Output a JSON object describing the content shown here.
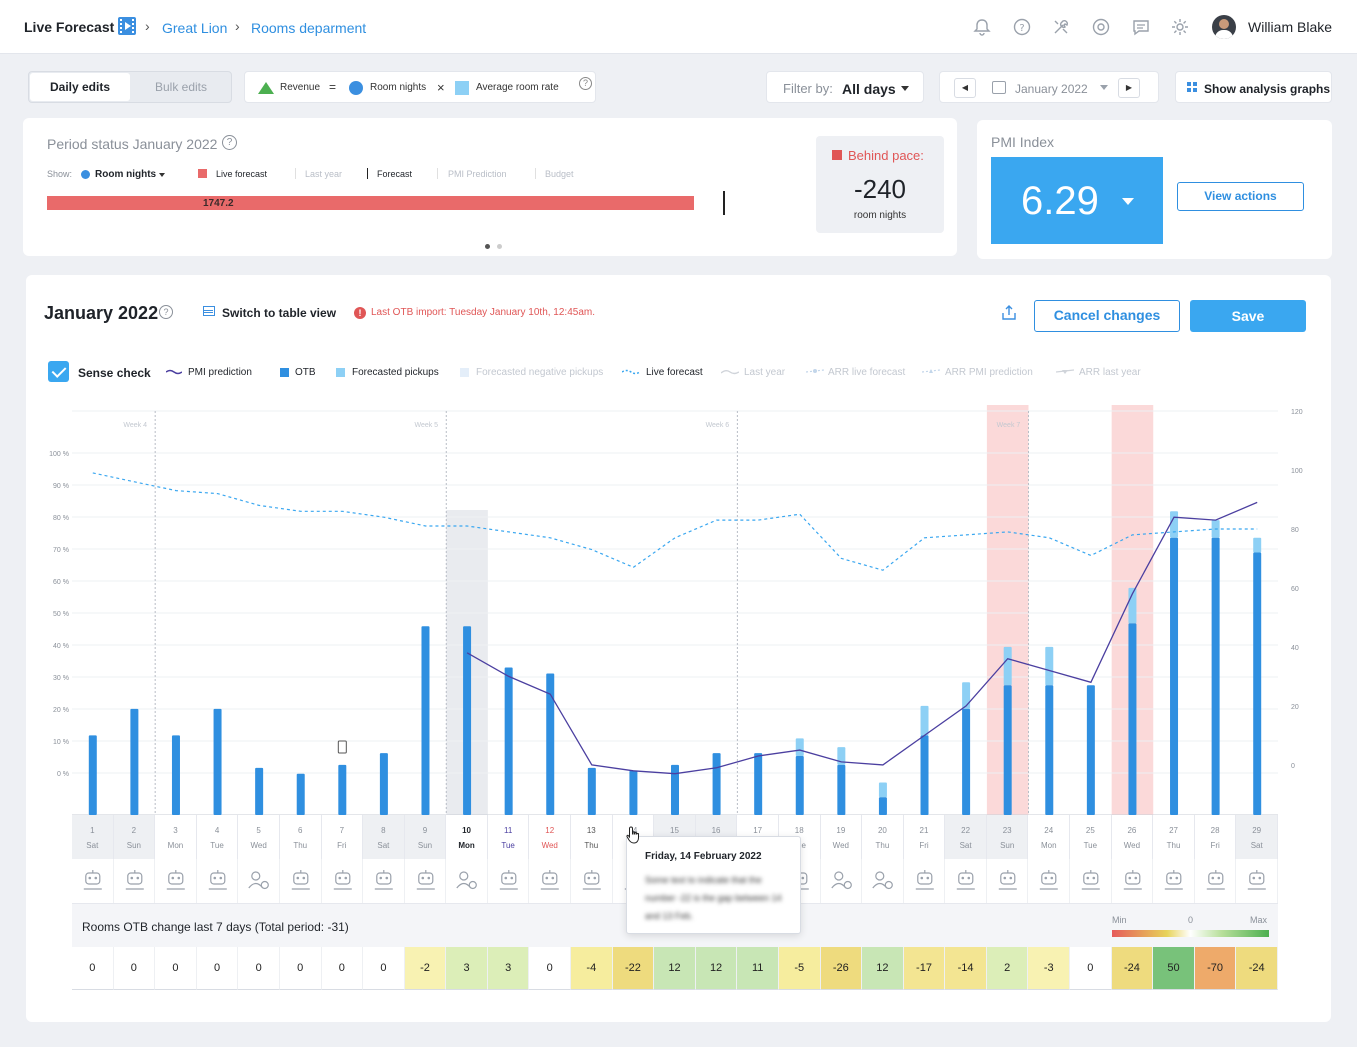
{
  "topbar": {
    "title": "Live Forecast",
    "breadcrumb": [
      "Great Lion",
      "Rooms deparment"
    ],
    "icons": [
      "bell-icon",
      "help-icon",
      "tools-icon",
      "settings-badge-icon",
      "chat-icon",
      "gear-icon"
    ],
    "user_name": "William Blake"
  },
  "toolbar": {
    "daily_edits": "Daily edits",
    "bulk_edits": "Bulk edits",
    "formula": {
      "revenue": "Revenue",
      "equals": "=",
      "room_nights": "Room nights",
      "times": "×",
      "average_room_rate": "Average room rate"
    },
    "filter_label": "Filter by:",
    "filter_value": "All days",
    "month": "January 2022",
    "show_graphs": "Show analysis graphs"
  },
  "period": {
    "title": "Period status January 2022",
    "show_label": "Show:",
    "show_value": "Room nights",
    "legend": [
      "Live forecast",
      "Last year",
      "Forecast",
      "PMI Prediction",
      "Budget"
    ],
    "bar_value": "1747.2",
    "pace_label": "Behind pace:",
    "pace_value": "-240",
    "pace_unit": "room nights"
  },
  "pmi": {
    "title": "PMI Index",
    "value": "6.29",
    "view_actions": "View actions"
  },
  "main": {
    "title": "January 2022",
    "table_view": "Switch to table view",
    "warning": "Last OTB import: Tuesday January 10th, 12:45am.",
    "cancel": "Cancel changes",
    "save": "Save",
    "legend": {
      "sense_check": "Sense check",
      "pmi_prediction": "PMI prediction",
      "otb": "OTB",
      "forecasted_pickups": "Forecasted pickups",
      "forecasted_negative_pickups": "Forecasted negative pickups",
      "live_forecast": "Live forecast",
      "last_year": "Last year",
      "arr_live_forecast": "ARR live forecast",
      "arr_pmi_prediction": "ARR PMI prediction",
      "arr_last_year": "ARR last year"
    },
    "otb_change_label": "Rooms OTB change last 7 days (Total period: -31)",
    "scale": {
      "min": "Min",
      "zero": "0",
      "max": "Max"
    }
  },
  "tooltip": {
    "title": "Friday, 14 February 2022",
    "body": "Some text to indicate that the number -22 is the gap between 14 and 13 Feb."
  },
  "colors": {
    "otb": "#2f8fe0",
    "pickup": "#8dd0f5",
    "pmi_line": "#4b3fa0",
    "live_forecast": "#3aa7f0",
    "highlight": "#fbd9d9",
    "accent": "#3aa7f0"
  },
  "chart_data": {
    "type": "bar",
    "title": "",
    "week_labels": [
      "Week 4",
      "Week 5",
      "Week 6",
      "Week 7"
    ],
    "left_axis": {
      "ticks": [
        "100 %",
        "90 %",
        "80 %",
        "70 %",
        "60 %",
        "50 %",
        "40 %",
        "30 %",
        "20 %",
        "10 %",
        "0 %"
      ]
    },
    "right_axis": {
      "ticks": [
        "120",
        "100",
        "80",
        "60",
        "40",
        "20",
        "0"
      ],
      "ylim": [
        -17,
        120
      ]
    },
    "days": [
      {
        "d": "1",
        "w": "Sat",
        "otb": 10,
        "pickup": 0,
        "pmi": null,
        "live": 99,
        "weekend": true,
        "delta": "0"
      },
      {
        "d": "2",
        "w": "Sun",
        "otb": 19,
        "pickup": 0,
        "pmi": null,
        "live": 96,
        "weekend": true,
        "delta": "0"
      },
      {
        "d": "3",
        "w": "Mon",
        "otb": 10,
        "pickup": 0,
        "pmi": null,
        "live": 93,
        "weekend": false,
        "delta": "0"
      },
      {
        "d": "4",
        "w": "Tue",
        "otb": 19,
        "pickup": 0,
        "pmi": null,
        "live": 92,
        "weekend": false,
        "delta": "0"
      },
      {
        "d": "5",
        "w": "Wed",
        "otb": -1,
        "pickup": 0,
        "pmi": null,
        "live": 88,
        "weekend": false,
        "delta": "0"
      },
      {
        "d": "6",
        "w": "Thu",
        "otb": -3,
        "pickup": 0,
        "pmi": null,
        "live": 86,
        "weekend": false,
        "delta": "0"
      },
      {
        "d": "7",
        "w": "Fri",
        "otb": 0,
        "pickup": 0,
        "pmi": null,
        "live": 86,
        "weekend": false,
        "delta": "0"
      },
      {
        "d": "8",
        "w": "Sat",
        "otb": 4,
        "pickup": 0,
        "pmi": null,
        "live": 84,
        "weekend": true,
        "delta": "0"
      },
      {
        "d": "9",
        "w": "Sun",
        "otb": 47,
        "pickup": 0,
        "pmi": null,
        "live": 81,
        "weekend": true,
        "delta": "-2"
      },
      {
        "d": "10",
        "w": "Mon",
        "otb": 47,
        "pickup": 0,
        "pmi": 38,
        "live": 81,
        "weekend": false,
        "delta": "3"
      },
      {
        "d": "11",
        "w": "Tue",
        "otb": 33,
        "pickup": 0,
        "pmi": 30,
        "live": 79,
        "weekend": false,
        "delta": "3"
      },
      {
        "d": "12",
        "w": "Wed",
        "otb": 31,
        "pickup": 0,
        "pmi": 24,
        "live": 77,
        "weekend": false,
        "delta": "0"
      },
      {
        "d": "13",
        "w": "Thu",
        "otb": -1,
        "pickup": 0,
        "pmi": 0,
        "live": 73,
        "weekend": false,
        "delta": "-4"
      },
      {
        "d": "14",
        "w": "Fri",
        "otb": -2,
        "pickup": 0,
        "pmi": -2,
        "live": 67,
        "weekend": false,
        "delta": "-22"
      },
      {
        "d": "15",
        "w": "Sat",
        "otb": 0,
        "pickup": 0,
        "pmi": -3,
        "live": 77,
        "weekend": true,
        "delta": "12"
      },
      {
        "d": "16",
        "w": "Sun",
        "otb": 4,
        "pickup": 0,
        "pmi": -1,
        "live": 83,
        "weekend": true,
        "delta": "12"
      },
      {
        "d": "17",
        "w": "Mon",
        "otb": 4,
        "pickup": 0,
        "pmi": 3,
        "live": 83,
        "weekend": false,
        "delta": "11"
      },
      {
        "d": "18",
        "w": "Tue",
        "otb": 3,
        "pickup": 9,
        "pmi": 5,
        "live": 85,
        "weekend": false,
        "delta": "-5"
      },
      {
        "d": "19",
        "w": "Wed",
        "otb": 0,
        "pickup": 6,
        "pmi": 1,
        "live": 70,
        "weekend": false,
        "delta": "-26"
      },
      {
        "d": "20",
        "w": "Thu",
        "otb": -11,
        "pickup": -6,
        "pmi": 0,
        "live": 66,
        "weekend": false,
        "delta": "12"
      },
      {
        "d": "21",
        "w": "Fri",
        "otb": 10,
        "pickup": 20,
        "pmi": 10,
        "live": 77,
        "weekend": false,
        "delta": "-17"
      },
      {
        "d": "22",
        "w": "Sat",
        "otb": 19,
        "pickup": 28,
        "pmi": 20,
        "live": 78,
        "weekend": true,
        "delta": "-14"
      },
      {
        "d": "23",
        "w": "Sun",
        "otb": 27,
        "pickup": 40,
        "pmi": 36,
        "live": 79,
        "weekend": true,
        "delta": "2"
      },
      {
        "d": "24",
        "w": "Mon",
        "otb": 27,
        "pickup": 40,
        "pmi": 32,
        "live": 77,
        "weekend": false,
        "delta": "-3"
      },
      {
        "d": "25",
        "w": "Tue",
        "otb": 27,
        "pickup": 0,
        "pmi": 28,
        "live": 71,
        "weekend": false,
        "delta": "0"
      },
      {
        "d": "26",
        "w": "Wed",
        "otb": 48,
        "pickup": 60,
        "pmi": 58,
        "live": 78,
        "weekend": false,
        "delta": "-24"
      },
      {
        "d": "27",
        "w": "Thu",
        "otb": 77,
        "pickup": 86,
        "pmi": 84,
        "live": 79,
        "weekend": false,
        "delta": "50"
      },
      {
        "d": "28",
        "w": "Fri",
        "otb": 77,
        "pickup": 83,
        "pmi": 83,
        "live": 80,
        "weekend": false,
        "delta": "-70"
      },
      {
        "d": "29",
        "w": "Sat",
        "otb": 72,
        "pickup": 77,
        "pmi": 89,
        "live": 80,
        "weekend": true,
        "delta": "-24"
      }
    ],
    "highlighted_days": [
      "23",
      "26"
    ],
    "selected_day": "10"
  }
}
